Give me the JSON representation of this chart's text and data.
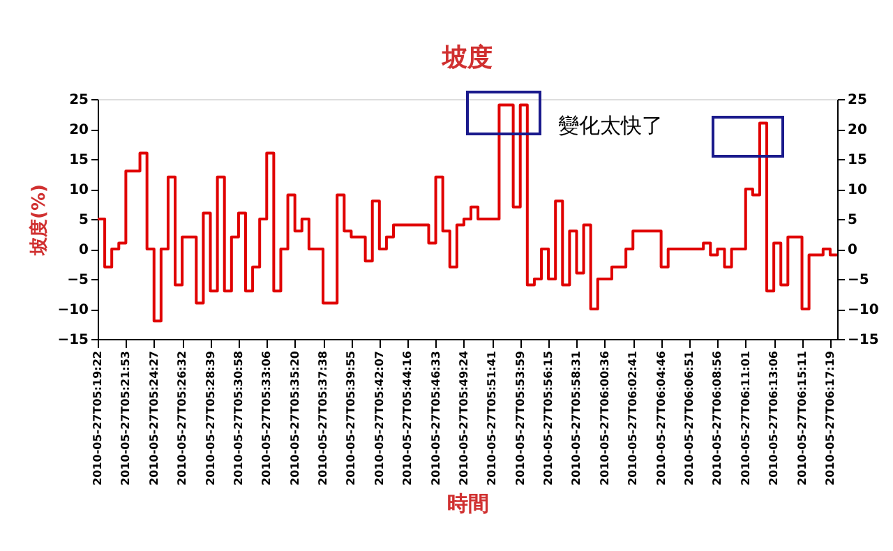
{
  "chart_data": {
    "type": "step",
    "title": "坡度",
    "xlabel": "時間",
    "ylabel": "坡度(%)",
    "categories": [
      "2010-05-27T05:19:22",
      null,
      null,
      null,
      "2010-05-27T05:21:53",
      null,
      null,
      null,
      "2010-05-27T05:24:27",
      null,
      null,
      null,
      "2010-05-27T05:26:32",
      null,
      null,
      null,
      "2010-05-27T05:28:39",
      null,
      null,
      null,
      "2010-05-27T05:30:58",
      null,
      null,
      null,
      "2010-05-27T05:33:06",
      null,
      null,
      null,
      "2010-05-27T05:35:20",
      null,
      null,
      null,
      "2010-05-27T05:37:38",
      null,
      null,
      null,
      "2010-05-27T05:39:55",
      null,
      null,
      null,
      "2010-05-27T05:42:07",
      null,
      null,
      null,
      "2010-05-27T05:44:16",
      null,
      null,
      null,
      "2010-05-27T05:46:33",
      null,
      null,
      null,
      "2010-05-27T05:49:24",
      null,
      null,
      null,
      "2010-05-27T05:51:41",
      null,
      null,
      null,
      "2010-05-27T05:53:59",
      null,
      null,
      null,
      "2010-05-27T05:56:15",
      null,
      null,
      null,
      "2010-05-27T05:58:31",
      null,
      null,
      null,
      "2010-05-27T06:00:36",
      null,
      null,
      null,
      "2010-05-27T06:02:41",
      null,
      null,
      null,
      "2010-05-27T06:04:46",
      null,
      null,
      null,
      "2010-05-27T06:06:51",
      null,
      null,
      null,
      "2010-05-27T06:08:56",
      null,
      null,
      null,
      "2010-05-27T06:11:01",
      null,
      null,
      null,
      "2010-05-27T06:13:06",
      null,
      null,
      null,
      "2010-05-27T06:15:11",
      null,
      null,
      null,
      "2010-05-27T06:17:19",
      null
    ],
    "series": [
      {
        "color": "#e00000",
        "values": [
          5,
          -3,
          0,
          1,
          13,
          13,
          16,
          0,
          -12,
          0,
          12,
          -6,
          2,
          2,
          -9,
          6,
          -7,
          12,
          -7,
          2,
          6,
          -7,
          -3,
          5,
          16,
          -7,
          0,
          9,
          3,
          5,
          0,
          0,
          -9,
          -9,
          9,
          3,
          2,
          2,
          -2,
          8,
          0,
          2,
          4,
          4,
          4,
          4,
          4,
          1,
          12,
          3,
          -3,
          4,
          5,
          7,
          5,
          5,
          5,
          24,
          24,
          7,
          24,
          -6,
          -5,
          0,
          -5,
          8,
          -6,
          3,
          -4,
          4,
          -10,
          -5,
          -5,
          -3,
          -3,
          0,
          3,
          3,
          3,
          3,
          -3,
          0,
          0,
          0,
          0,
          0,
          1,
          -1,
          0,
          -3,
          0,
          0,
          10,
          9,
          21,
          -7,
          1,
          -6,
          2,
          2,
          -10,
          -1,
          -1,
          0,
          -1,
          -1
        ]
      }
    ],
    "annotations": [
      "變化太快了"
    ],
    "ylim": [
      -15,
      25
    ],
    "yticks": [
      -15,
      -10,
      -5,
      0,
      5,
      10,
      15,
      20,
      25
    ],
    "y2lim": [
      -15,
      25
    ],
    "y2ticks": [
      -15,
      -10,
      -5,
      0,
      5,
      10,
      15,
      20,
      25
    ],
    "grid": false,
    "line_style": "solid",
    "marker": "none"
  }
}
